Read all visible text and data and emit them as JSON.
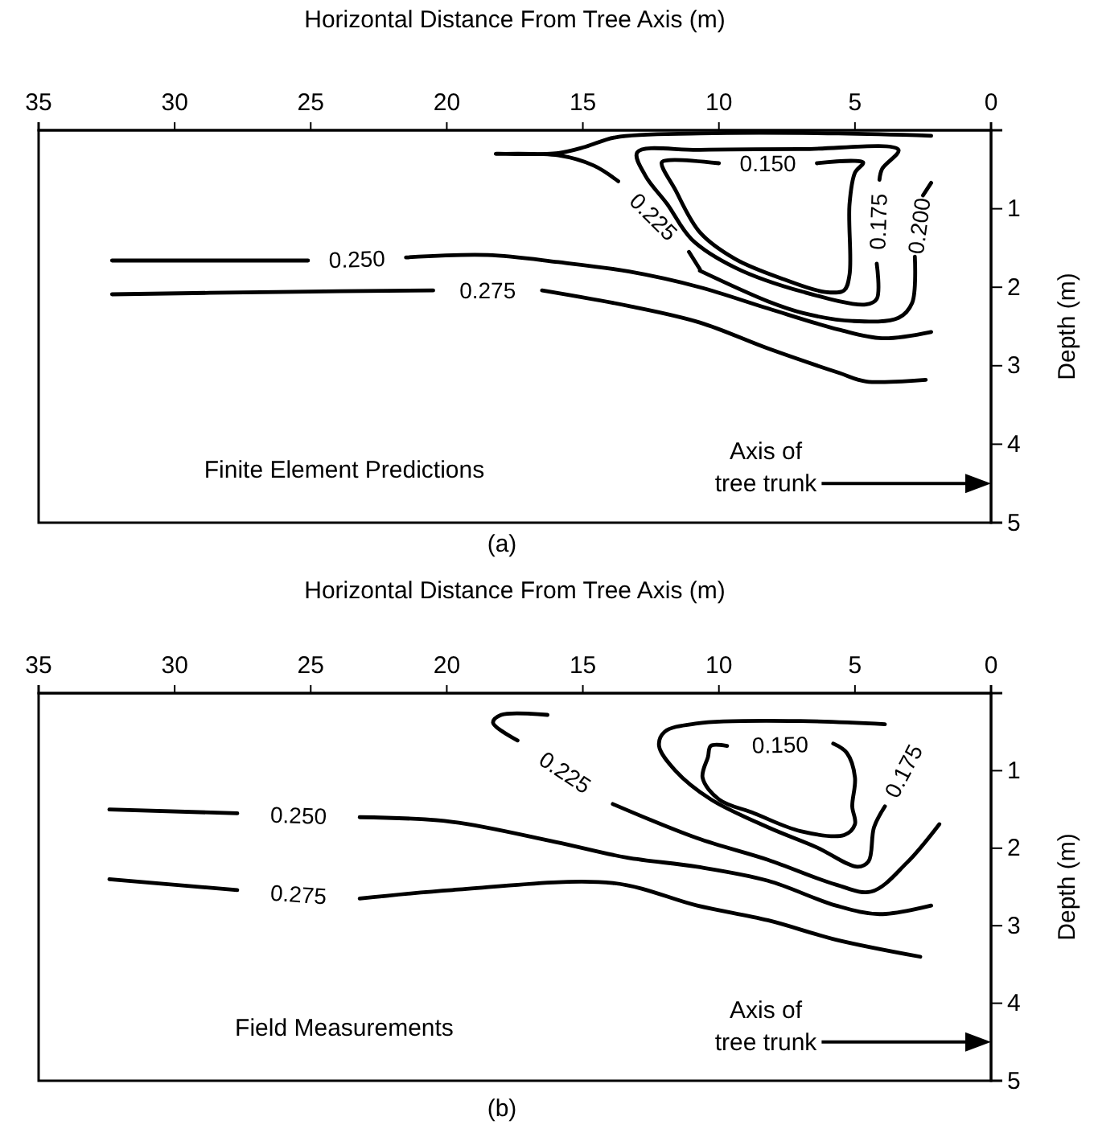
{
  "chart_data": [
    {
      "type": "line",
      "title": "(a)",
      "xlabel": "Horizontal Distance From Tree Axis (m)",
      "ylabel": "Depth (m)",
      "xlim": [
        35,
        0
      ],
      "xticks": [
        35,
        30,
        25,
        20,
        15,
        10,
        5,
        0
      ],
      "ylim": [
        5,
        0
      ],
      "yticks": [
        1,
        2,
        3,
        4,
        5
      ],
      "grid": false,
      "annotations": [
        "Finite Element Predictions",
        "Axis of\ntree trunk"
      ],
      "series": [
        {
          "name": "0.150",
          "color": "#000000",
          "x": [
            6.4,
            4.7,
            5.0,
            5.2,
            5.2,
            5.4,
            6.1,
            7.6,
            9.4,
            10.7,
            11.6,
            12.1,
            11.8,
            10.0
          ],
          "values": [
            0.42,
            0.41,
            0.54,
            0.94,
            1.84,
            2.04,
            2.06,
            1.9,
            1.64,
            1.3,
            0.76,
            0.41,
            0.38,
            0.42
          ]
        },
        {
          "name": "0.175",
          "color": "#000000",
          "x": [
            4.2,
            4.2,
            4.6,
            6.9,
            9.4,
            11.0,
            11.9,
            12.7,
            13.0,
            10.7,
            6.9,
            3.4,
            4.0,
            4.1
          ],
          "values": [
            1.7,
            2.15,
            2.22,
            2.06,
            1.75,
            1.39,
            0.94,
            0.58,
            0.28,
            0.25,
            0.24,
            0.25,
            0.49,
            0.63
          ]
        },
        {
          "name": "0.200",
          "color": "#000000",
          "x": [
            2.2,
            2.5,
            null,
            2.8,
            2.9,
            3.4,
            5.1,
            6.9,
            8.2,
            10.7
          ],
          "values": [
            0.67,
            0.83,
            null,
            1.61,
            2.2,
            2.39,
            2.43,
            2.33,
            2.18,
            1.79
          ]
        },
        {
          "name": "0.225",
          "color": "#000000",
          "x": [
            2.2,
            5.6,
            10.7,
            13.8,
            14.9,
            15.9,
            18.2,
            15.9,
            14.6,
            13.7,
            null,
            11.1,
            10.7
          ],
          "values": [
            0.07,
            0.04,
            0.04,
            0.09,
            0.21,
            0.29,
            0.3,
            0.32,
            0.45,
            0.65,
            null,
            1.55,
            1.77
          ]
        },
        {
          "name": "0.250",
          "color": "#000000",
          "x": [
            32.3,
            25.1,
            null,
            21.5,
            18.5,
            15.9,
            13.3,
            10.7,
            8.2,
            5.6,
            4.0,
            2.2
          ],
          "values": [
            1.66,
            1.66,
            null,
            1.62,
            1.59,
            1.68,
            1.8,
            2.0,
            2.27,
            2.54,
            2.65,
            2.57
          ]
        },
        {
          "name": "0.275",
          "color": "#000000",
          "x": [
            32.3,
            26.2,
            20.5,
            null,
            16.5,
            13.3,
            10.7,
            8.2,
            5.6,
            4.6,
            2.4
          ],
          "values": [
            2.09,
            2.06,
            2.04,
            null,
            2.04,
            2.24,
            2.45,
            2.78,
            3.09,
            3.2,
            3.18
          ]
        }
      ]
    },
    {
      "type": "line",
      "title": "(b)",
      "xlabel": "Horizontal Distance From Tree Axis (m)",
      "ylabel": "Depth (m)",
      "xlim": [
        35,
        0
      ],
      "xticks": [
        35,
        30,
        25,
        20,
        15,
        10,
        5,
        0
      ],
      "ylim": [
        5,
        0
      ],
      "yticks": [
        1,
        2,
        3,
        4,
        5
      ],
      "grid": false,
      "annotations": [
        "Field Measurements",
        "Axis of\ntree trunk"
      ],
      "series": [
        {
          "name": "0.150",
          "color": "#000000",
          "x": [
            5.8,
            5.3,
            5.0,
            5.1,
            5.0,
            5.4,
            7.0,
            8.7,
            10.0,
            10.6,
            10.4,
            10.3,
            9.7
          ],
          "values": [
            0.65,
            0.77,
            1.09,
            1.46,
            1.69,
            1.83,
            1.78,
            1.55,
            1.37,
            1.09,
            0.82,
            0.68,
            0.68
          ]
        },
        {
          "name": "0.175",
          "color": "#000000",
          "x": [
            3.9,
            7.0,
            10.8,
            12.0,
            12.2,
            11.6,
            10.3,
            8.2,
            6.4,
            4.9,
            4.5,
            4.3,
            3.9,
            null
          ],
          "values": [
            0.4,
            0.36,
            0.39,
            0.5,
            0.68,
            1.0,
            1.37,
            1.73,
            1.99,
            2.24,
            2.17,
            1.73,
            1.46,
            null
          ]
        },
        {
          "name": "0.225",
          "color": "#000000",
          "x": [
            16.3,
            18.0,
            18.3,
            17.4,
            null,
            13.9,
            10.8,
            8.2,
            5.7,
            4.4,
            3.1,
            1.9
          ],
          "values": [
            0.28,
            0.28,
            0.38,
            0.61,
            null,
            1.43,
            1.87,
            2.15,
            2.47,
            2.56,
            2.19,
            1.69
          ]
        },
        {
          "name": "0.250",
          "color": "#000000",
          "x": [
            32.4,
            27.7,
            null,
            23.2,
            19.8,
            16.0,
            13.4,
            10.8,
            8.2,
            5.7,
            4.1,
            2.2
          ],
          "values": [
            1.5,
            1.55,
            null,
            1.6,
            1.66,
            1.92,
            2.12,
            2.24,
            2.42,
            2.74,
            2.85,
            2.74
          ]
        },
        {
          "name": "0.275",
          "color": "#000000",
          "x": [
            32.4,
            27.7,
            null,
            23.2,
            19.8,
            13.9,
            10.8,
            8.2,
            5.7,
            2.6
          ],
          "values": [
            2.4,
            2.54,
            null,
            2.65,
            2.54,
            2.45,
            2.74,
            2.93,
            3.18,
            3.4
          ]
        }
      ]
    }
  ]
}
